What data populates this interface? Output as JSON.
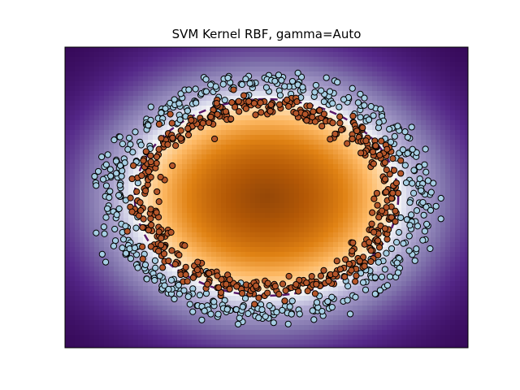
{
  "chart_data": {
    "type": "scatter",
    "title": "SVM Kernel RBF, gamma=Auto",
    "xlabel": "",
    "ylabel": "",
    "xlim": [
      -1.3,
      1.3
    ],
    "ylim": [
      -1.3,
      1.3
    ],
    "grid": false,
    "axes_ticks": false,
    "background": {
      "kind": "decision_function_heatmap",
      "colormap": "PuOr",
      "center_color": "#7f3b08",
      "boundary_color": "#f7f7f7",
      "edge_color": "#2d004b"
    },
    "decision_boundary": {
      "style": "dashed",
      "color": "#5a1a6a",
      "radius": 0.85
    },
    "series": [
      {
        "role": "inner-class",
        "color": "#b5562a",
        "edge": "#000000",
        "radius_mean": 0.8,
        "radius_spread": 0.05,
        "count": 500
      },
      {
        "role": "outer-class",
        "color": "#a6cee3",
        "edge": "#000000",
        "radius_mean": 1.0,
        "radius_spread": 0.06,
        "count": 500
      }
    ]
  },
  "colors": {
    "inner_point": "#b5562a",
    "outer_point": "#a6cee3",
    "boundary": "#5a1a6a"
  }
}
